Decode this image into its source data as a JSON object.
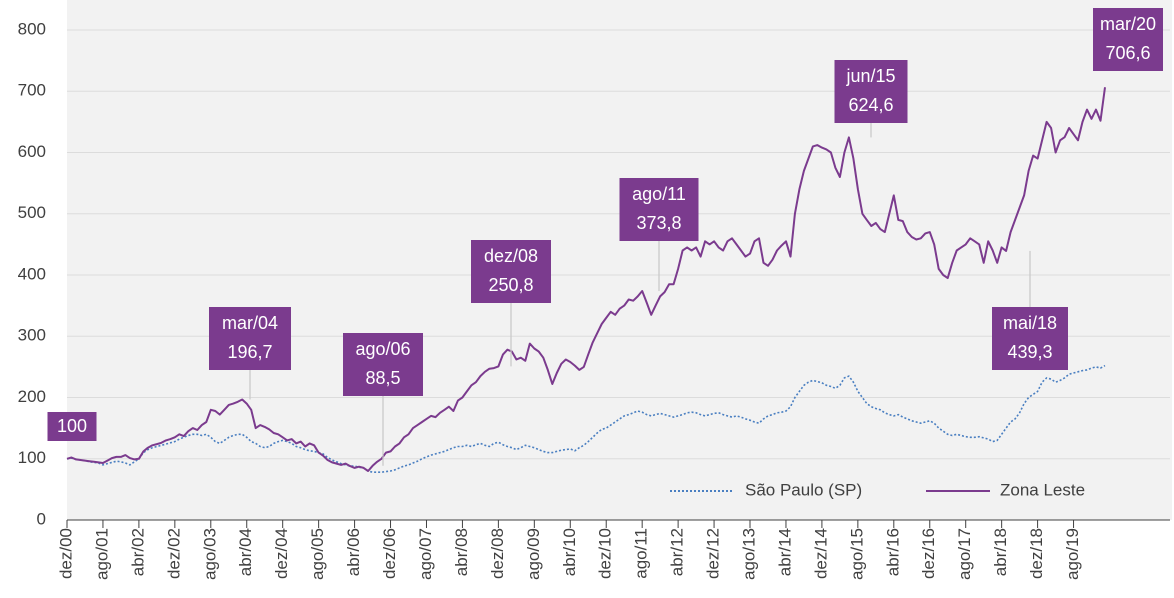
{
  "chart_data": {
    "type": "line",
    "categories": [
      "dez/00",
      null,
      null,
      null,
      null,
      null,
      null,
      null,
      "ago/01",
      null,
      null,
      null,
      null,
      null,
      null,
      null,
      "abr/02",
      null,
      null,
      null,
      null,
      null,
      null,
      null,
      "dez/02",
      null,
      null,
      null,
      null,
      null,
      null,
      null,
      "ago/03",
      null,
      null,
      null,
      null,
      null,
      null,
      null,
      "abr/04",
      null,
      null,
      null,
      null,
      null,
      null,
      null,
      "dez/04",
      null,
      null,
      null,
      null,
      null,
      null,
      null,
      "ago/05",
      null,
      null,
      null,
      null,
      null,
      null,
      null,
      "abr/06",
      null,
      null,
      null,
      null,
      null,
      null,
      null,
      "dez/06",
      null,
      null,
      null,
      null,
      null,
      null,
      null,
      "ago/07",
      null,
      null,
      null,
      null,
      null,
      null,
      null,
      "abr/08",
      null,
      null,
      null,
      null,
      null,
      null,
      null,
      "dez/08",
      null,
      null,
      null,
      null,
      null,
      null,
      null,
      "ago/09",
      null,
      null,
      null,
      null,
      null,
      null,
      null,
      "abr/10",
      null,
      null,
      null,
      null,
      null,
      null,
      null,
      "dez/10",
      null,
      null,
      null,
      null,
      null,
      null,
      null,
      "ago/11",
      null,
      null,
      null,
      null,
      null,
      null,
      null,
      "abr/12",
      null,
      null,
      null,
      null,
      null,
      null,
      null,
      "dez/12",
      null,
      null,
      null,
      null,
      null,
      null,
      null,
      "ago/13",
      null,
      null,
      null,
      null,
      null,
      null,
      null,
      "abr/14",
      null,
      null,
      null,
      null,
      null,
      null,
      null,
      "dez/14",
      null,
      null,
      null,
      null,
      null,
      null,
      null,
      "ago/15",
      null,
      null,
      null,
      null,
      null,
      null,
      null,
      "abr/16",
      null,
      null,
      null,
      null,
      null,
      null,
      null,
      "dez/16",
      null,
      null,
      null,
      null,
      null,
      null,
      null,
      "ago/17",
      null,
      null,
      null,
      null,
      null,
      null,
      null,
      "abr/18",
      null,
      null,
      null,
      null,
      null,
      null,
      null,
      "dez/18",
      null,
      null,
      null,
      null,
      null,
      null,
      null,
      "ago/19",
      null,
      null,
      null,
      null,
      null,
      null,
      null
    ],
    "series": [
      {
        "name": "São Paulo (SP)",
        "color": "#4a7fc1",
        "dash": "dotted",
        "values": [
          100,
          101,
          99,
          98,
          97,
          95,
          94,
          93,
          90,
          92,
          94,
          96,
          95,
          93,
          90,
          95,
          100,
          110,
          115,
          118,
          120,
          122,
          124,
          126,
          128,
          132,
          135,
          138,
          140,
          140,
          138,
          140,
          135,
          128,
          125,
          130,
          135,
          138,
          140,
          140,
          135,
          128,
          125,
          120,
          118,
          120,
          125,
          128,
          130,
          128,
          125,
          120,
          118,
          115,
          113,
          112,
          110,
          108,
          102,
          98,
          95,
          92,
          90,
          88,
          88,
          86,
          85,
          80,
          78,
          78,
          78,
          79,
          80,
          82,
          85,
          88,
          90,
          93,
          96,
          100,
          103,
          106,
          108,
          110,
          112,
          115,
          118,
          120,
          120,
          122,
          120,
          123,
          125,
          122,
          120,
          125,
          127,
          123,
          120,
          118,
          115,
          118,
          122,
          120,
          118,
          115,
          112,
          110,
          110,
          112,
          114,
          115,
          116,
          113,
          118,
          122,
          128,
          135,
          142,
          148,
          150,
          155,
          160,
          165,
          170,
          172,
          175,
          178,
          176,
          172,
          170,
          172,
          174,
          172,
          170,
          168,
          170,
          172,
          175,
          176,
          175,
          172,
          170,
          172,
          174,
          175,
          172,
          170,
          168,
          170,
          168,
          165,
          163,
          160,
          158,
          165,
          170,
          172,
          175,
          176,
          178,
          185,
          200,
          210,
          220,
          225,
          228,
          226,
          224,
          220,
          218,
          215,
          220,
          232,
          235,
          225,
          210,
          200,
          190,
          185,
          182,
          180,
          175,
          172,
          170,
          172,
          168,
          165,
          162,
          160,
          158,
          160,
          162,
          158,
          150,
          145,
          140,
          138,
          140,
          138,
          136,
          135,
          135,
          136,
          134,
          132,
          128,
          130,
          140,
          150,
          160,
          165,
          175,
          190,
          200,
          205,
          210,
          225,
          232,
          230,
          225,
          228,
          232,
          238,
          240,
          242,
          244,
          245,
          248,
          250,
          248,
          252
        ]
      },
      {
        "name": "Zona Leste",
        "color": "#7b3b8e",
        "dash": "solid",
        "values": [
          100,
          102,
          99,
          98,
          97,
          96,
          95,
          94,
          93,
          97,
          101,
          103,
          103,
          106,
          101,
          99,
          100,
          112,
          118,
          122,
          124,
          126,
          130,
          132,
          135,
          140,
          137,
          145,
          150,
          147,
          155,
          160,
          180,
          178,
          172,
          180,
          188,
          190,
          193,
          196.7,
          190,
          180,
          150,
          155,
          152,
          148,
          142,
          140,
          135,
          130,
          132,
          125,
          128,
          120,
          125,
          122,
          110,
          105,
          98,
          94,
          92,
          90,
          92,
          88,
          85,
          87,
          85,
          80,
          88.5,
          95,
          100,
          110,
          112,
          120,
          125,
          135,
          140,
          150,
          155,
          160,
          165,
          170,
          168,
          175,
          180,
          185,
          178,
          195,
          200,
          210,
          220,
          225,
          235,
          242,
          247,
          248,
          250.8,
          270,
          278,
          275,
          262,
          265,
          260,
          288,
          280,
          275,
          265,
          245,
          222,
          240,
          255,
          262,
          258,
          252,
          245,
          250,
          270,
          290,
          305,
          320,
          330,
          340,
          335,
          345,
          350,
          360,
          358,
          365,
          373.8,
          355,
          335,
          350,
          365,
          372,
          385,
          385,
          410,
          440,
          445,
          440,
          445,
          430,
          455,
          450,
          455,
          445,
          440,
          455,
          460,
          450,
          440,
          430,
          435,
          455,
          460,
          420,
          415,
          425,
          440,
          448,
          455,
          430,
          500,
          540,
          570,
          590,
          610,
          612,
          608,
          605,
          600,
          575,
          560,
          600,
          624.6,
          590,
          540,
          500,
          490,
          480,
          485,
          475,
          470,
          500,
          530,
          490,
          488,
          470,
          462,
          458,
          460,
          468,
          470,
          450,
          410,
          400,
          395,
          420,
          440,
          445,
          450,
          460,
          455,
          450,
          420,
          455,
          440,
          420,
          445,
          439.3,
          470,
          490,
          510,
          530,
          570,
          595,
          590,
          620,
          650,
          640,
          600,
          620,
          625,
          640,
          630,
          620,
          650,
          670,
          655,
          670,
          652,
          706.6
        ]
      }
    ],
    "annotations": [
      {
        "value": 100
      },
      {
        "date": "mar/04",
        "value": 196.7,
        "label": "196,7"
      },
      {
        "date": "ago/06",
        "value": 88.5,
        "label": "88,5"
      },
      {
        "date": "dez/08",
        "value": 250.8,
        "label": "250,8"
      },
      {
        "date": "ago/11",
        "value": 373.8,
        "label": "373,8"
      },
      {
        "date": "jun/15",
        "value": 624.6,
        "label": "624,6"
      },
      {
        "date": "mai/18",
        "value": 439.3,
        "label": "439,3"
      },
      {
        "date": "mar/20",
        "value": 706.6,
        "label": "706,6"
      }
    ],
    "annotation_color": "#7b3b8e",
    "ylim": [
      0,
      800
    ],
    "yticks": [
      0,
      100,
      200,
      300,
      400,
      500,
      600,
      700,
      800
    ],
    "grid": true,
    "legend": "bottom-right"
  }
}
